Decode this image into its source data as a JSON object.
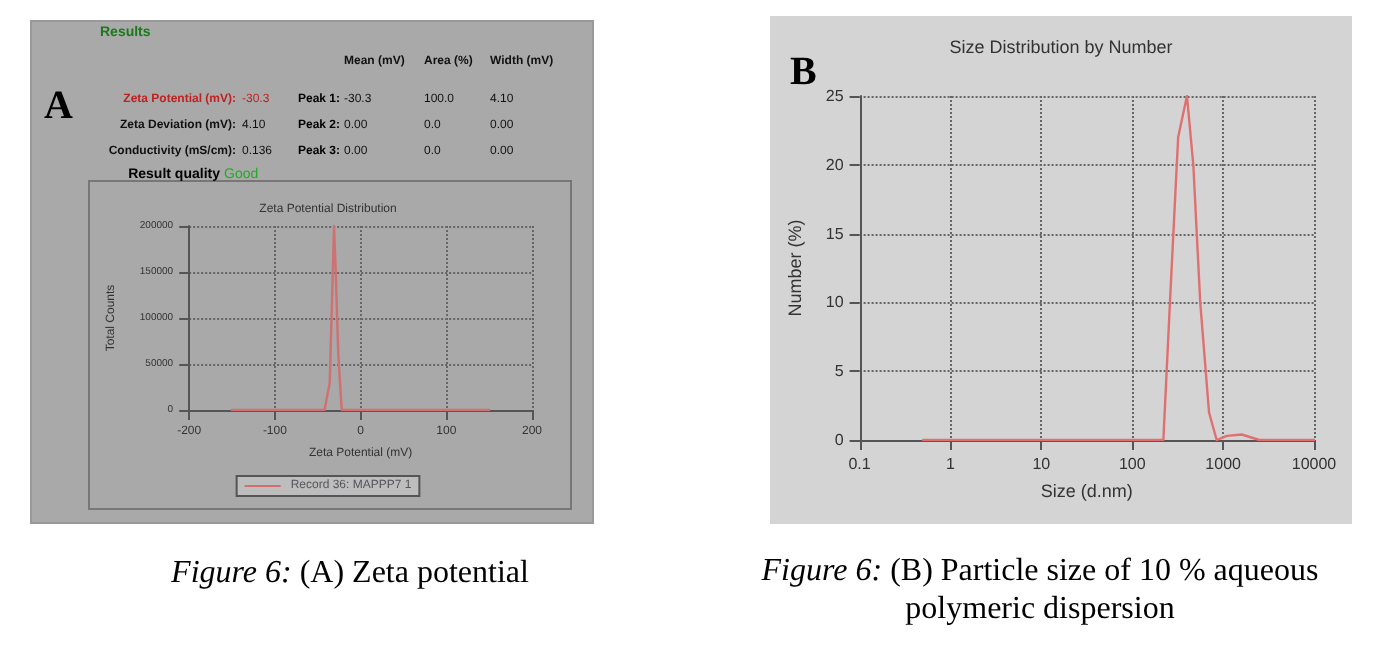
{
  "chart_data": [
    {
      "type": "other",
      "title": "Results",
      "annotations": [
        "Mean (mV)",
        "Area (%)",
        "Width (mV)",
        "Zeta Potential (mV):",
        "-30.3",
        "Peak 1:",
        "-30.3",
        "100.0",
        "4.10",
        "Zeta Deviation (mV):",
        "4.10",
        "Peak 2:",
        "0.00",
        "0.0",
        "0.00",
        "Conductivity (mS/cm):",
        "0.136",
        "Peak 3:",
        "0.00",
        "0.0",
        "0.00",
        "Result quality",
        "Good"
      ]
    },
    {
      "type": "line",
      "title": "Zeta Potential Distribution",
      "xlabel": "Zeta Potential (mV)",
      "ylabel": "Total Counts",
      "annotations": [
        "A",
        "Figure 6: (A) Zeta potential"
      ],
      "xlim": [
        -200,
        200
      ],
      "xticks": [
        -200,
        -100,
        0,
        100,
        200
      ],
      "ylim": [
        0,
        200000
      ],
      "yticks": [
        0,
        50000,
        100000,
        150000,
        200000
      ],
      "grid": true,
      "legend": "bottom",
      "marker": "none",
      "x": [
        -150,
        -42,
        -36,
        -33,
        -31,
        -29,
        -26,
        -22,
        150
      ],
      "series": [
        {
          "name": "Record 36: MAPPP7 1",
          "color": "#d07070",
          "values": [
            0,
            0,
            30000,
            130000,
            200000,
            150000,
            60000,
            0,
            0
          ]
        }
      ]
    },
    {
      "type": "line",
      "title": "Size Distribution by Number",
      "xlabel": "Size (d.nm)",
      "ylabel": "Number (%)",
      "annotations": [
        "B",
        "Figure 6: (B) Particle size of 10 % aqueous polymeric dispersion"
      ],
      "log": "x",
      "xlim": [
        0.1,
        10000
      ],
      "xticks": [
        0.1,
        1,
        10,
        100,
        1000,
        10000
      ],
      "ylim": [
        0,
        25
      ],
      "yticks": [
        0,
        5,
        10,
        15,
        20,
        25
      ],
      "grid": true,
      "marker": "none",
      "x": [
        0.5,
        220,
        260,
        320,
        400,
        470,
        560,
        700,
        850,
        1100,
        1600,
        2500,
        10000
      ],
      "series": [
        {
          "color": "#e07070",
          "values": [
            0,
            0,
            10,
            22,
            25,
            20,
            10,
            2,
            0,
            0.3,
            0.4,
            0,
            0
          ]
        }
      ]
    }
  ]
}
